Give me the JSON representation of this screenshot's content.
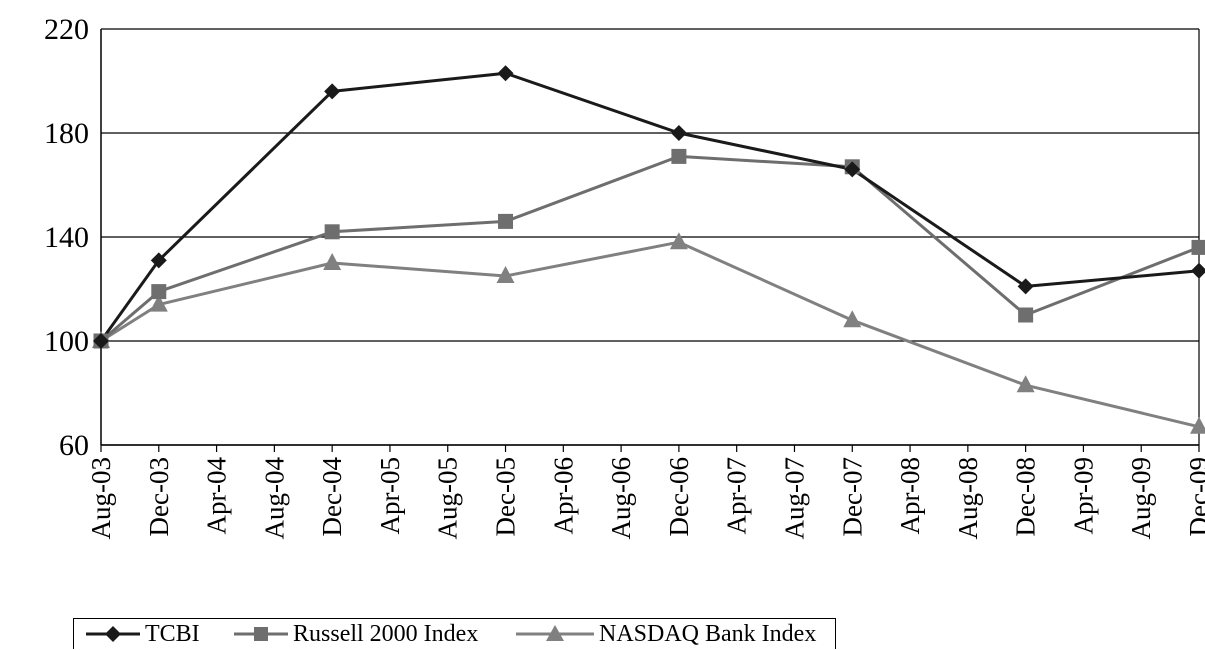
{
  "chart_data": {
    "type": "line",
    "title": "",
    "xlabel": "",
    "ylabel": "",
    "x_tick_labels": [
      "Aug-03",
      "Dec-03",
      "Apr-04",
      "Aug-04",
      "Dec-04",
      "Apr-05",
      "Aug-05",
      "Dec-05",
      "Apr-06",
      "Aug-06",
      "Dec-06",
      "Apr-07",
      "Aug-07",
      "Dec-07",
      "Apr-08",
      "Aug-08",
      "Dec-08",
      "Apr-09",
      "Aug-09",
      "Dec-09"
    ],
    "x": [
      "Aug-03",
      "Dec-03",
      "Dec-04",
      "Dec-05",
      "Dec-06",
      "Dec-07",
      "Dec-08",
      "Dec-09"
    ],
    "ylim": [
      60,
      220
    ],
    "y_ticks": [
      60,
      100,
      140,
      180,
      220
    ],
    "grid": "horizontal",
    "legend_position": "bottom-left",
    "series": [
      {
        "name": "TCBI",
        "marker": "diamond",
        "color": "#1a1a1a",
        "values": [
          100,
          131,
          196,
          203,
          180,
          166,
          121,
          127
        ]
      },
      {
        "name": "Russell 2000 Index",
        "marker": "square",
        "color": "#6e6e6e",
        "values": [
          100,
          119,
          142,
          146,
          171,
          167,
          110,
          136
        ]
      },
      {
        "name": "NASDAQ Bank Index",
        "marker": "triangle",
        "color": "#808080",
        "values": [
          100,
          114,
          130,
          125,
          138,
          108,
          83,
          67
        ]
      }
    ]
  }
}
